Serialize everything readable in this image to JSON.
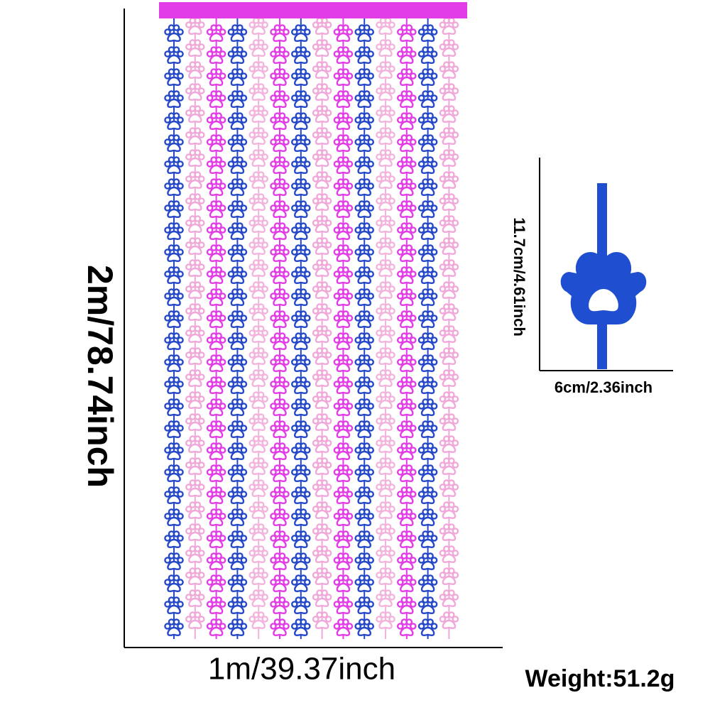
{
  "height_label": "2m/78.74inch",
  "width_label": "1m/39.37inch",
  "detail": {
    "height_label": "11.7cm/4.61inch",
    "width_label": "6cm/2.36inch"
  },
  "weight_label": "Weight:51.2g"
}
